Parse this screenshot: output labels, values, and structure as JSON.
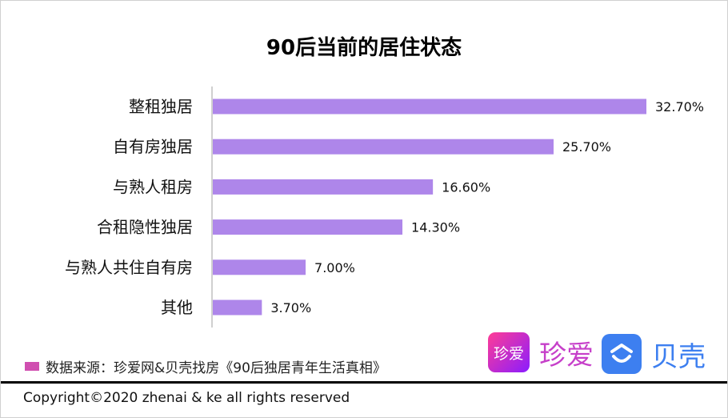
{
  "chart_data": {
    "type": "bar",
    "orientation": "horizontal",
    "title": "90后当前的居住状态",
    "categories": [
      "整租独居",
      "自有房独居",
      "与熟人租房",
      "合租隐性独居",
      "与熟人共住自有房",
      "其他"
    ],
    "values": [
      32.7,
      25.7,
      16.6,
      14.3,
      7.0,
      3.7
    ],
    "data_labels": [
      "32.70%",
      "25.70%",
      "16.60%",
      "14.30%",
      "7.00%",
      "3.70%"
    ],
    "bar_color": "#ae86ea",
    "xlim": [
      0,
      35
    ],
    "grid": false
  },
  "source": {
    "label": "数据来源：珍爱网&贝壳找房《90后独居青年生活真相》",
    "swatch_color": "#d04fb0"
  },
  "logos": {
    "zhenai_box": "珍爱",
    "zhenai_text": "珍爱",
    "beike_text": "贝壳"
  },
  "footer": {
    "copyright": "Copyright©2020 zhenai & ke all rights reserved"
  }
}
